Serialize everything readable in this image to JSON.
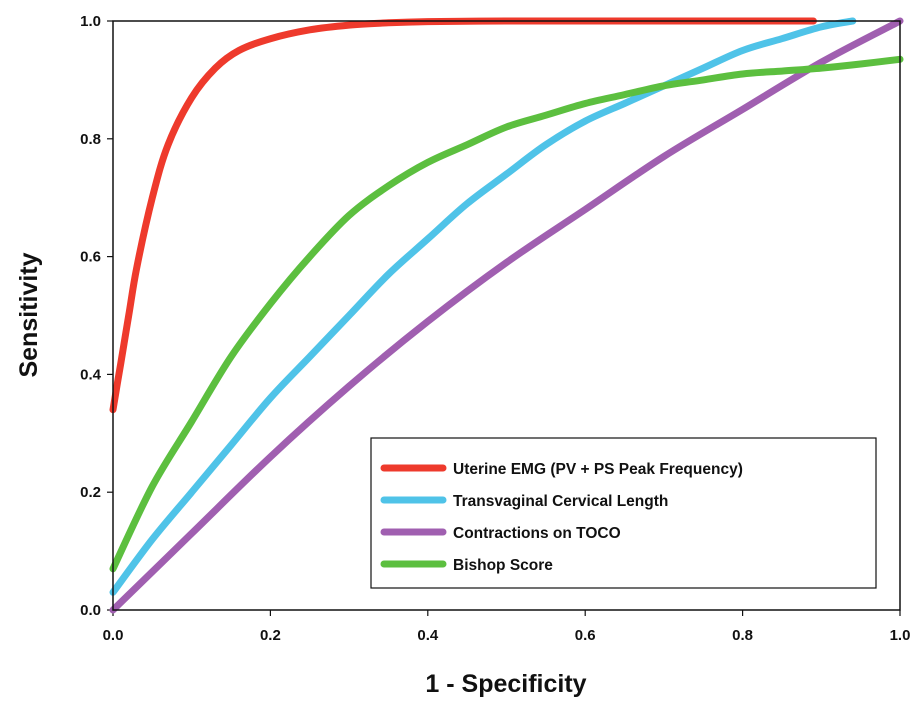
{
  "chart_data": {
    "type": "line",
    "title": "",
    "xlabel": "1 - Specificity",
    "ylabel": "Sensitivity",
    "xlim": [
      0,
      1
    ],
    "ylim": [
      0,
      1
    ],
    "xticks": [
      "0.0",
      "0.2",
      "0.4",
      "0.6",
      "0.8",
      "1.0"
    ],
    "yticks": [
      "0.0",
      "0.2",
      "0.4",
      "0.6",
      "0.8",
      "1.0"
    ],
    "grid": false,
    "legend_position": "bottom-right",
    "series": [
      {
        "name": "Uterine EMG (PV + PS Peak Frequency)",
        "color": "#ee3a2c",
        "x": [
          0.0,
          0.005,
          0.01,
          0.02,
          0.03,
          0.05,
          0.07,
          0.1,
          0.13,
          0.16,
          0.2,
          0.25,
          0.3,
          0.35,
          0.4,
          0.5,
          0.6,
          0.7,
          0.8,
          0.89
        ],
        "y": [
          0.34,
          0.38,
          0.42,
          0.5,
          0.58,
          0.7,
          0.79,
          0.87,
          0.92,
          0.95,
          0.97,
          0.985,
          0.993,
          0.997,
          0.999,
          1.0,
          1.0,
          1.0,
          1.0,
          1.0
        ]
      },
      {
        "name": "Transvaginal Cervical Length",
        "color": "#4fc3e8",
        "x": [
          0.0,
          0.05,
          0.1,
          0.15,
          0.2,
          0.25,
          0.3,
          0.35,
          0.4,
          0.45,
          0.5,
          0.55,
          0.6,
          0.65,
          0.7,
          0.75,
          0.8,
          0.85,
          0.9,
          0.94
        ],
        "y": [
          0.03,
          0.12,
          0.2,
          0.28,
          0.36,
          0.43,
          0.5,
          0.57,
          0.63,
          0.69,
          0.74,
          0.79,
          0.83,
          0.86,
          0.89,
          0.92,
          0.95,
          0.97,
          0.99,
          1.0
        ]
      },
      {
        "name": "Contractions on TOCO",
        "color": "#a05fb0",
        "x": [
          0.0,
          0.1,
          0.2,
          0.3,
          0.4,
          0.5,
          0.6,
          0.7,
          0.8,
          0.9,
          1.0
        ],
        "y": [
          0.0,
          0.13,
          0.26,
          0.38,
          0.49,
          0.59,
          0.68,
          0.77,
          0.85,
          0.93,
          1.0
        ]
      },
      {
        "name": "Bishop Score",
        "color": "#5cbf3f",
        "x": [
          0.0,
          0.05,
          0.1,
          0.15,
          0.2,
          0.25,
          0.3,
          0.35,
          0.4,
          0.45,
          0.5,
          0.55,
          0.6,
          0.65,
          0.7,
          0.75,
          0.8,
          0.85,
          0.9,
          0.95,
          1.0
        ],
        "y": [
          0.07,
          0.21,
          0.32,
          0.43,
          0.52,
          0.6,
          0.67,
          0.72,
          0.76,
          0.79,
          0.82,
          0.84,
          0.86,
          0.875,
          0.89,
          0.9,
          0.91,
          0.915,
          0.92,
          0.927,
          0.935
        ]
      }
    ]
  }
}
